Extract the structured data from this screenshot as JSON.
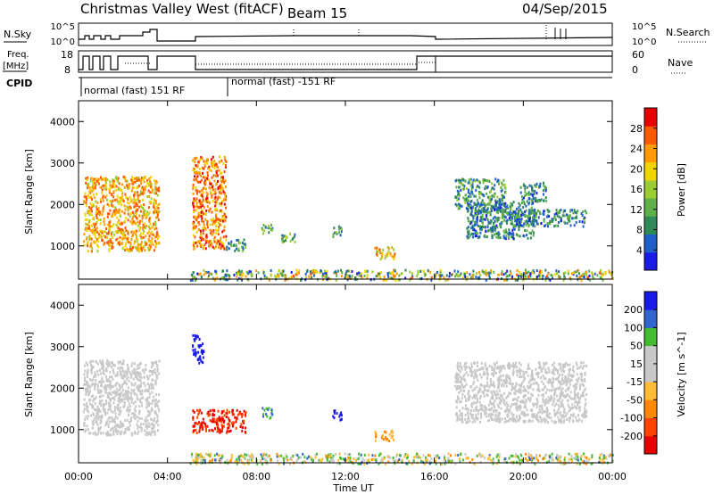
{
  "header": {
    "title": "Christmas Valley West (fitACF)",
    "beam": "Beam 15",
    "date": "04/Sep/2015"
  },
  "top_panels": {
    "nsky_label": "N.Sky",
    "nsky_ticks_left": [
      "10^5",
      "10^0"
    ],
    "nsky_ticks_right": [
      "10^5",
      "10^0"
    ],
    "nsearch_label": "N.Search",
    "freq_label_1": "Freq.",
    "freq_label_2": "[MHz]",
    "freq_ticks": [
      "18",
      "8"
    ],
    "nave_ticks": [
      "60",
      "0"
    ],
    "nave_label": "Nave",
    "cpid_label": "CPID",
    "cpid_1": "normal (fast) 151 RF",
    "cpid_2": "normal (fast) -151 RF"
  },
  "x_axis": {
    "label": "Time UT",
    "ticks": [
      "00:00",
      "04:00",
      "08:00",
      "12:00",
      "16:00",
      "20:00",
      "00:00"
    ]
  },
  "colors": {
    "power_scale": [
      "#1a1ae6",
      "#1f5fc8",
      "#2f8a57",
      "#5fb04a",
      "#9ccc33",
      "#f0d400",
      "#ff9a00",
      "#ff5a00",
      "#e60000"
    ],
    "velocity_scale": [
      "#e60000",
      "#ff4400",
      "#ff8800",
      "#ffbb33",
      "#c8c8c8",
      "#c8c8c8",
      "#44bb33",
      "#3366cc",
      "#1a1ae6"
    ]
  },
  "chart_data": [
    {
      "type": "heatmap",
      "title": "Power",
      "ylabel": "Slant Range [km]",
      "xlabel": "Time UT",
      "xlim": [
        0,
        24
      ],
      "ylim": [
        200,
        4500
      ],
      "yticks": [
        "1000",
        "2000",
        "3000",
        "4000"
      ],
      "colorbar_label": "Power [dB]",
      "colorbar_ticks": [
        "4",
        "8",
        "12",
        "16",
        "20",
        "24",
        "28"
      ],
      "blobs": [
        {
          "t0": 0.2,
          "t1": 3.6,
          "r0": 900,
          "r1": 2700,
          "v": 22
        },
        {
          "t0": 5.1,
          "t1": 6.6,
          "r0": 950,
          "r1": 3200,
          "v": 24
        },
        {
          "t0": 6.6,
          "t1": 7.5,
          "r0": 900,
          "r1": 1200,
          "v": 10
        },
        {
          "t0": 8.2,
          "t1": 8.7,
          "r0": 1300,
          "r1": 1550,
          "v": 12
        },
        {
          "t0": 9.1,
          "t1": 9.7,
          "r0": 1100,
          "r1": 1350,
          "v": 12
        },
        {
          "t0": 11.4,
          "t1": 11.8,
          "r0": 1250,
          "r1": 1500,
          "v": 10
        },
        {
          "t0": 13.3,
          "t1": 14.2,
          "r0": 700,
          "r1": 1000,
          "v": 20
        },
        {
          "t0": 16.9,
          "t1": 19.2,
          "r0": 1850,
          "r1": 2650,
          "v": 10
        },
        {
          "t0": 17.4,
          "t1": 20.5,
          "r0": 1200,
          "r1": 2100,
          "v": 8
        },
        {
          "t0": 18.8,
          "t1": 22.8,
          "r0": 1500,
          "r1": 1900,
          "v": 8
        },
        {
          "t0": 19.8,
          "t1": 21.0,
          "r0": 2100,
          "r1": 2550,
          "v": 8
        }
      ],
      "ground_band": {
        "t0": 5.0,
        "t1": 24.0,
        "r0": 200,
        "r1": 450
      }
    },
    {
      "type": "heatmap",
      "title": "Velocity",
      "ylabel": "Slant Range [km]",
      "xlabel": "Time UT",
      "xlim": [
        0,
        24
      ],
      "ylim": [
        200,
        4500
      ],
      "yticks": [
        "1000",
        "2000",
        "3000",
        "4000"
      ],
      "colorbar_label": "Velocity [m s^-1]",
      "colorbar_ticks": [
        "-200",
        "-100",
        "-50",
        "-15",
        "15",
        "50",
        "100",
        "200"
      ],
      "blobs": [
        {
          "t0": 0.2,
          "t1": 3.6,
          "r0": 900,
          "r1": 2700,
          "v": 0
        },
        {
          "t0": 5.1,
          "t1": 5.6,
          "r0": 2600,
          "r1": 3300,
          "v": 200
        },
        {
          "t0": 5.1,
          "t1": 7.5,
          "r0": 950,
          "r1": 1500,
          "v": -200
        },
        {
          "t0": 8.2,
          "t1": 8.7,
          "r0": 1300,
          "r1": 1550,
          "v": 50
        },
        {
          "t0": 11.4,
          "t1": 11.8,
          "r0": 1250,
          "r1": 1500,
          "v": 150
        },
        {
          "t0": 13.3,
          "t1": 14.2,
          "r0": 750,
          "r1": 1000,
          "v": -50
        },
        {
          "t0": 16.9,
          "t1": 22.8,
          "r0": 1200,
          "r1": 2650,
          "v": 0
        }
      ],
      "ground_band": {
        "t0": 5.0,
        "t1": 24.0,
        "r0": 200,
        "r1": 450
      }
    }
  ]
}
